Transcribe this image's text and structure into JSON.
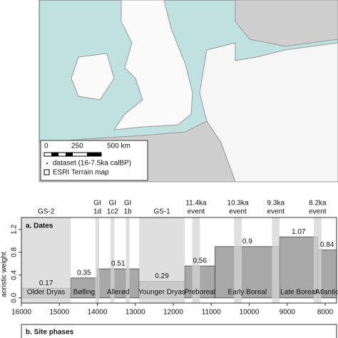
{
  "map": {
    "scale_labels": [
      "0",
      "250",
      "500 km"
    ],
    "legend": [
      "dataset (16-7.5ka calBP)",
      "ESRI Terrain map"
    ]
  },
  "chart_data": {
    "type": "bar",
    "panel_title": "a. Dates",
    "y_label": "aoristic weight",
    "next_panel_title": "b. Site phases",
    "categories": [
      "Older Dryas",
      "Bølling",
      "Allerød",
      "Younger Dryas",
      "Preboreal",
      "Early Boreal",
      "Late Boreal",
      "Atlantic"
    ],
    "values": [
      0.17,
      0.35,
      0.51,
      0.29,
      0.56,
      0.9,
      1.07,
      0.84
    ],
    "starts": [
      16000,
      14700,
      14000,
      12900,
      11700,
      10900,
      9200,
      8200
    ],
    "ends": [
      14700,
      14000,
      12900,
      11700,
      10900,
      9200,
      8200,
      7700
    ],
    "color": "#a8a8a8",
    "band_color": "#d4d4d4",
    "periods": [
      {
        "lines": [
          "GS-2"
        ],
        "start": 16000,
        "end": 14700
      },
      {
        "lines": [
          "GI",
          "1d"
        ],
        "start": 14050,
        "end": 13950
      },
      {
        "lines": [
          "GI",
          "1c2"
        ],
        "start": 13650,
        "end": 13550
      },
      {
        "lines": [
          "GI",
          "1b"
        ],
        "start": 13250,
        "end": 13150
      },
      {
        "lines": [
          "GS-1"
        ],
        "start": 12900,
        "end": 11700
      },
      {
        "lines": [
          "11.4ka",
          "event"
        ],
        "start": 11500,
        "end": 11300
      },
      {
        "lines": [
          "10.3ka",
          "event"
        ],
        "start": 10400,
        "end": 10200
      },
      {
        "lines": [
          "9.3ka",
          "event"
        ],
        "start": 9400,
        "end": 9200
      },
      {
        "lines": [
          "8.2ka",
          "event"
        ],
        "start": 8300,
        "end": 8100
      }
    ],
    "xlim": [
      16000,
      7700
    ],
    "xticks": [
      16000,
      15000,
      14000,
      13000,
      12000,
      11000,
      10000,
      9000,
      8000
    ],
    "ylim": [
      -0.09,
      1.41
    ],
    "yticks": [
      {
        "value": 0,
        "label": "0.0"
      },
      {
        "value": 0.4,
        "label": "0.4"
      },
      {
        "value": 0.8,
        "label": "0.8"
      },
      {
        "value": 1.2,
        "label": "1.2"
      }
    ]
  }
}
